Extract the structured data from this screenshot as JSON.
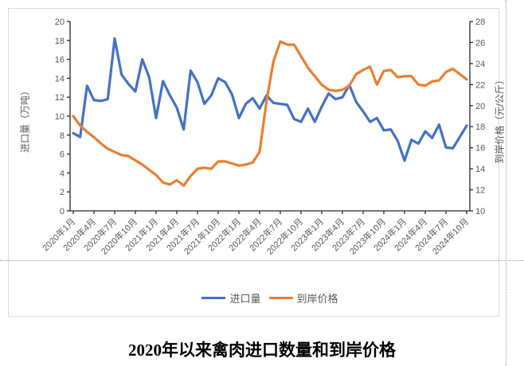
{
  "chart_data": {
    "type": "line",
    "title": "2020年以来禽肉进口数量和到岸价格",
    "x_tick_interval": 3,
    "months": [
      "2020年1月",
      "2020年2月",
      "2020年3月",
      "2020年4月",
      "2020年5月",
      "2020年6月",
      "2020年7月",
      "2020年8月",
      "2020年9月",
      "2020年10月",
      "2020年11月",
      "2020年12月",
      "2021年1月",
      "2021年2月",
      "2021年3月",
      "2021年4月",
      "2021年5月",
      "2021年6月",
      "2021年7月",
      "2021年8月",
      "2021年9月",
      "2021年10月",
      "2021年11月",
      "2021年12月",
      "2022年1月",
      "2022年2月",
      "2022年3月",
      "2022年4月",
      "2022年5月",
      "2022年6月",
      "2022年7月",
      "2022年8月",
      "2022年9月",
      "2022年10月",
      "2022年11月",
      "2022年12月",
      "2023年1月",
      "2023年2月",
      "2023年3月",
      "2023年4月",
      "2023年5月",
      "2023年6月",
      "2023年7月",
      "2023年8月",
      "2023年9月",
      "2023年10月",
      "2023年11月",
      "2023年12月",
      "2024年1月",
      "2024年2月",
      "2024年3月",
      "2024年4月",
      "2024年5月",
      "2024年6月",
      "2024年7月",
      "2024年8月",
      "2024年9月",
      "2024年10月"
    ],
    "left_axis": {
      "title": "进口量（万吨）",
      "min": 0,
      "max": 20,
      "step": 2,
      "ticks": [
        0,
        2,
        4,
        6,
        8,
        10,
        12,
        14,
        16,
        18,
        20
      ]
    },
    "right_axis": {
      "title": "到岸价格（元/公斤）",
      "min": 10,
      "max": 28,
      "step": 2,
      "ticks": [
        10,
        12,
        14,
        16,
        18,
        20,
        22,
        24,
        26,
        28
      ]
    },
    "series": [
      {
        "name": "进口量",
        "axis": "left",
        "color": "#4472C4",
        "values": [
          8.2,
          7.8,
          13.2,
          11.7,
          11.6,
          11.8,
          18.2,
          14.4,
          13.4,
          12.6,
          16.0,
          14.1,
          9.8,
          13.7,
          12.2,
          10.9,
          8.6,
          14.8,
          13.6,
          11.3,
          12.2,
          14.0,
          13.6,
          12.3,
          9.8,
          11.3,
          11.9,
          10.8,
          12.2,
          11.4,
          11.3,
          11.2,
          9.7,
          9.4,
          10.8,
          9.4,
          11.0,
          12.4,
          11.8,
          12.0,
          13.3,
          11.5,
          10.5,
          9.4,
          9.8,
          8.5,
          8.6,
          7.4,
          5.3,
          7.5,
          7.1,
          8.4,
          7.7,
          9.1,
          6.7,
          6.6,
          7.8,
          9.0
        ]
      },
      {
        "name": "到岸价格",
        "axis": "right",
        "color": "#ED7D31",
        "values": [
          19.0,
          18.1,
          17.5,
          17.0,
          16.4,
          15.9,
          15.6,
          15.3,
          15.2,
          14.8,
          14.4,
          13.9,
          13.4,
          12.7,
          12.5,
          12.9,
          12.4,
          13.3,
          14.0,
          14.1,
          14.0,
          14.7,
          14.7,
          14.5,
          14.3,
          14.4,
          14.6,
          15.6,
          20.4,
          24.2,
          26.1,
          25.8,
          25.8,
          24.7,
          23.6,
          22.8,
          22.0,
          21.5,
          21.4,
          21.5,
          21.9,
          23.0,
          23.4,
          23.7,
          22.0,
          23.3,
          23.4,
          22.7,
          22.8,
          22.8,
          22.0,
          21.9,
          22.3,
          22.4,
          23.2,
          23.5,
          23.0,
          22.5
        ]
      }
    ],
    "legend": {
      "position": "bottom"
    },
    "grid": false
  },
  "colors": {
    "axis_line": "#262626",
    "tick_label": "#595959",
    "frame_border": "#d9d9d9",
    "page_break": "#9e9e9e",
    "series_blue": "#4472C4",
    "series_orange": "#ED7D31",
    "title_color": "#000000"
  }
}
